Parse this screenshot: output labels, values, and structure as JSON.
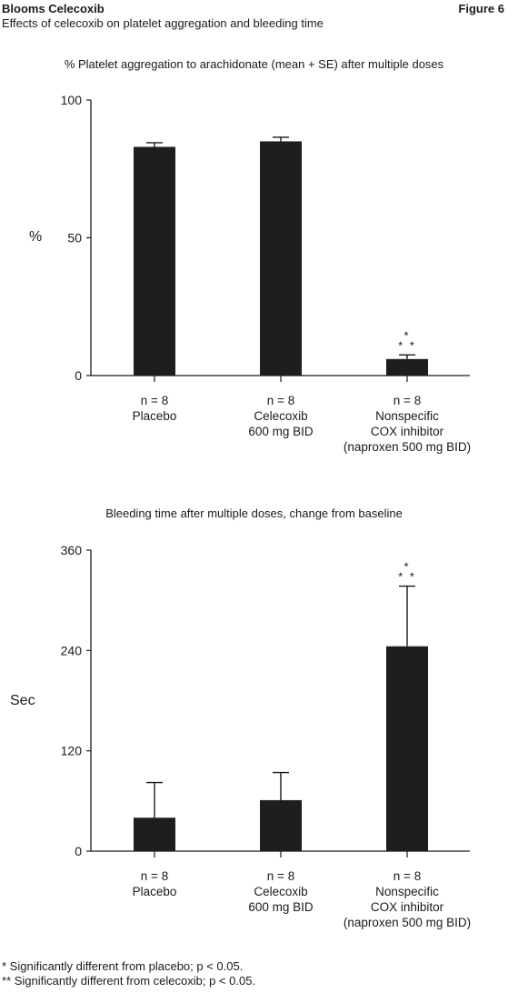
{
  "header": {
    "title": "Blooms Celecoxib",
    "subtitle": "Effects of celecoxib on platelet aggregation and bleeding time",
    "figure_label": "Figure 6"
  },
  "footnotes": [
    "*  Significantly different from placebo; p < 0.05.",
    "** Significantly different from celecoxib; p < 0.05."
  ],
  "chart_data": [
    {
      "type": "bar",
      "title": "% Platelet aggregation to arachidonate (mean + SE) after multiple doses",
      "ylabel": "%",
      "ylim": [
        0,
        100
      ],
      "yticks": [
        "0",
        "50",
        "100"
      ],
      "categories": [
        [
          "n = 8",
          "Placebo"
        ],
        [
          "n = 8",
          "Celecoxib",
          "600 mg BID"
        ],
        [
          "n = 8",
          "Nonspecific",
          "COX inhibitor",
          "(naproxen 500 mg BID)"
        ]
      ],
      "values": [
        83,
        85,
        6
      ],
      "errors": [
        1.5,
        1.5,
        1.5
      ],
      "annotations": [
        "",
        "",
        "*\n* *"
      ],
      "bar_color": "#1e1e1e"
    },
    {
      "type": "bar",
      "title": "Bleeding time after multiple doses, change from baseline",
      "ylabel": "Sec",
      "ylim": [
        0,
        360
      ],
      "yticks": [
        "0",
        "120",
        "240",
        "360"
      ],
      "categories": [
        [
          "n = 8",
          "Placebo"
        ],
        [
          "n = 8",
          "Celecoxib",
          "600 mg BID"
        ],
        [
          "n = 8",
          "Nonspecific",
          "COX inhibitor",
          "(naproxen 500 mg BID)"
        ]
      ],
      "values": [
        40,
        61,
        245
      ],
      "errors": [
        42,
        33,
        72
      ],
      "annotations": [
        "",
        "",
        "*\n* *"
      ],
      "bar_color": "#1e1e1e"
    }
  ]
}
